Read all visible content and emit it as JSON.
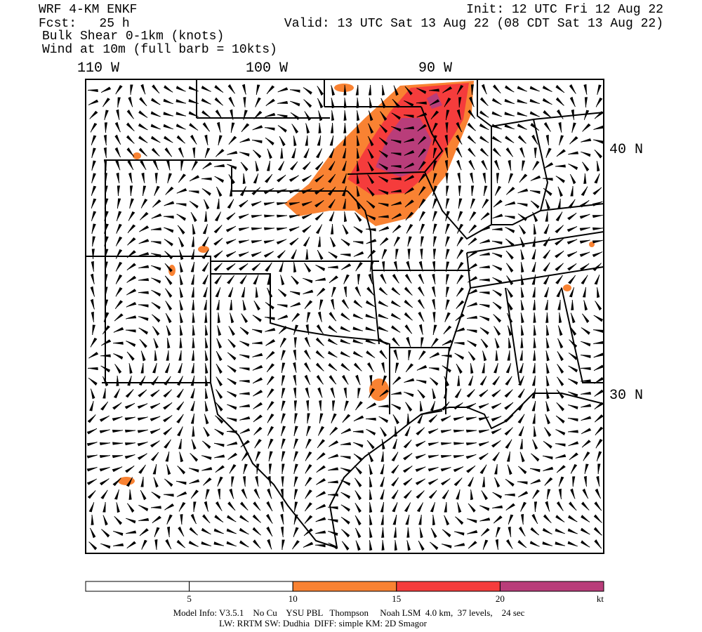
{
  "header": {
    "lines": [
      "WRF 4-KM ENKF",
      "Fcst:   25 h",
      "Bulk Shear 0-1km (knots)",
      "Wind at 10m (full barb = 10kts)"
    ],
    "init": "Init: 12 UTC Fri 12 Aug 22",
    "valid": "Valid: 13 UTC Sat 13 Aug 22 (08 CDT Sat 13 Aug 22)"
  },
  "map": {
    "lon_labels": [
      "110 W",
      "100 W",
      "90 W"
    ],
    "lat_labels": [
      "40 N",
      "30 N"
    ]
  },
  "colorbar": {
    "labels": [
      "5",
      "10",
      "15",
      "20",
      "kt"
    ],
    "colors": [
      "#ffffff",
      "#ffffff",
      "#f98232",
      "#f53c3c",
      "#b93d7a"
    ]
  },
  "footer": [
    "Model Info: V3.5.1    No Cu    YSU PBL   Thompson     Noah LSM  4.0 km,  37 levels,    24 sec",
    "LW: RRTM SW: Dudhia  DIFF: simple KM: 2D Smagor"
  ]
}
